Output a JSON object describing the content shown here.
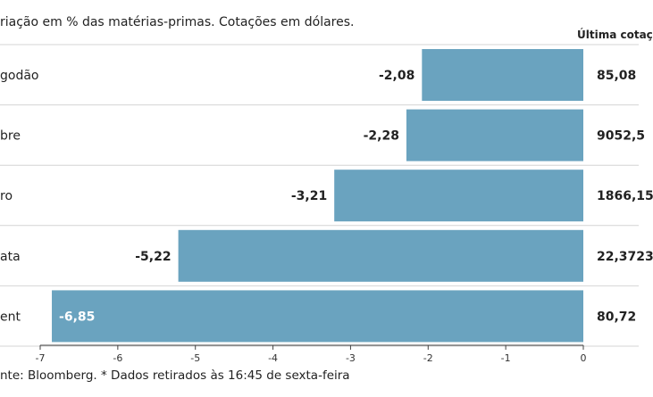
{
  "chart_data": {
    "type": "bar",
    "orientation": "horizontal",
    "title": "",
    "subtitle": "riação em % das matérias-primas. Cotações em dólares.",
    "value_column_header": "Última cotaç",
    "categories": [
      "godão",
      "bre",
      "ro",
      "ata",
      "ent"
    ],
    "values": [
      -2.08,
      -2.28,
      -3.21,
      -5.22,
      -6.85
    ],
    "value_labels": [
      "-2,08",
      "-2,28",
      "-3,21",
      "-5,22",
      "-6,85"
    ],
    "last_quotes": [
      "85,08",
      "9052,5",
      "1866,15",
      "22,3723",
      "80,72"
    ],
    "xlim": [
      -7,
      0
    ],
    "xticks": [
      -7,
      -6,
      -5,
      -4,
      -3,
      -2,
      -1,
      0
    ],
    "xtick_labels": [
      "-7",
      "-6",
      "-5",
      "-4",
      "-3",
      "-2",
      "-1",
      "0"
    ],
    "bar_color": "#6aa3bf",
    "grid": false,
    "source": "nte: Bloomberg.  * Dados retirados às 16:45 de sexta-feira"
  }
}
